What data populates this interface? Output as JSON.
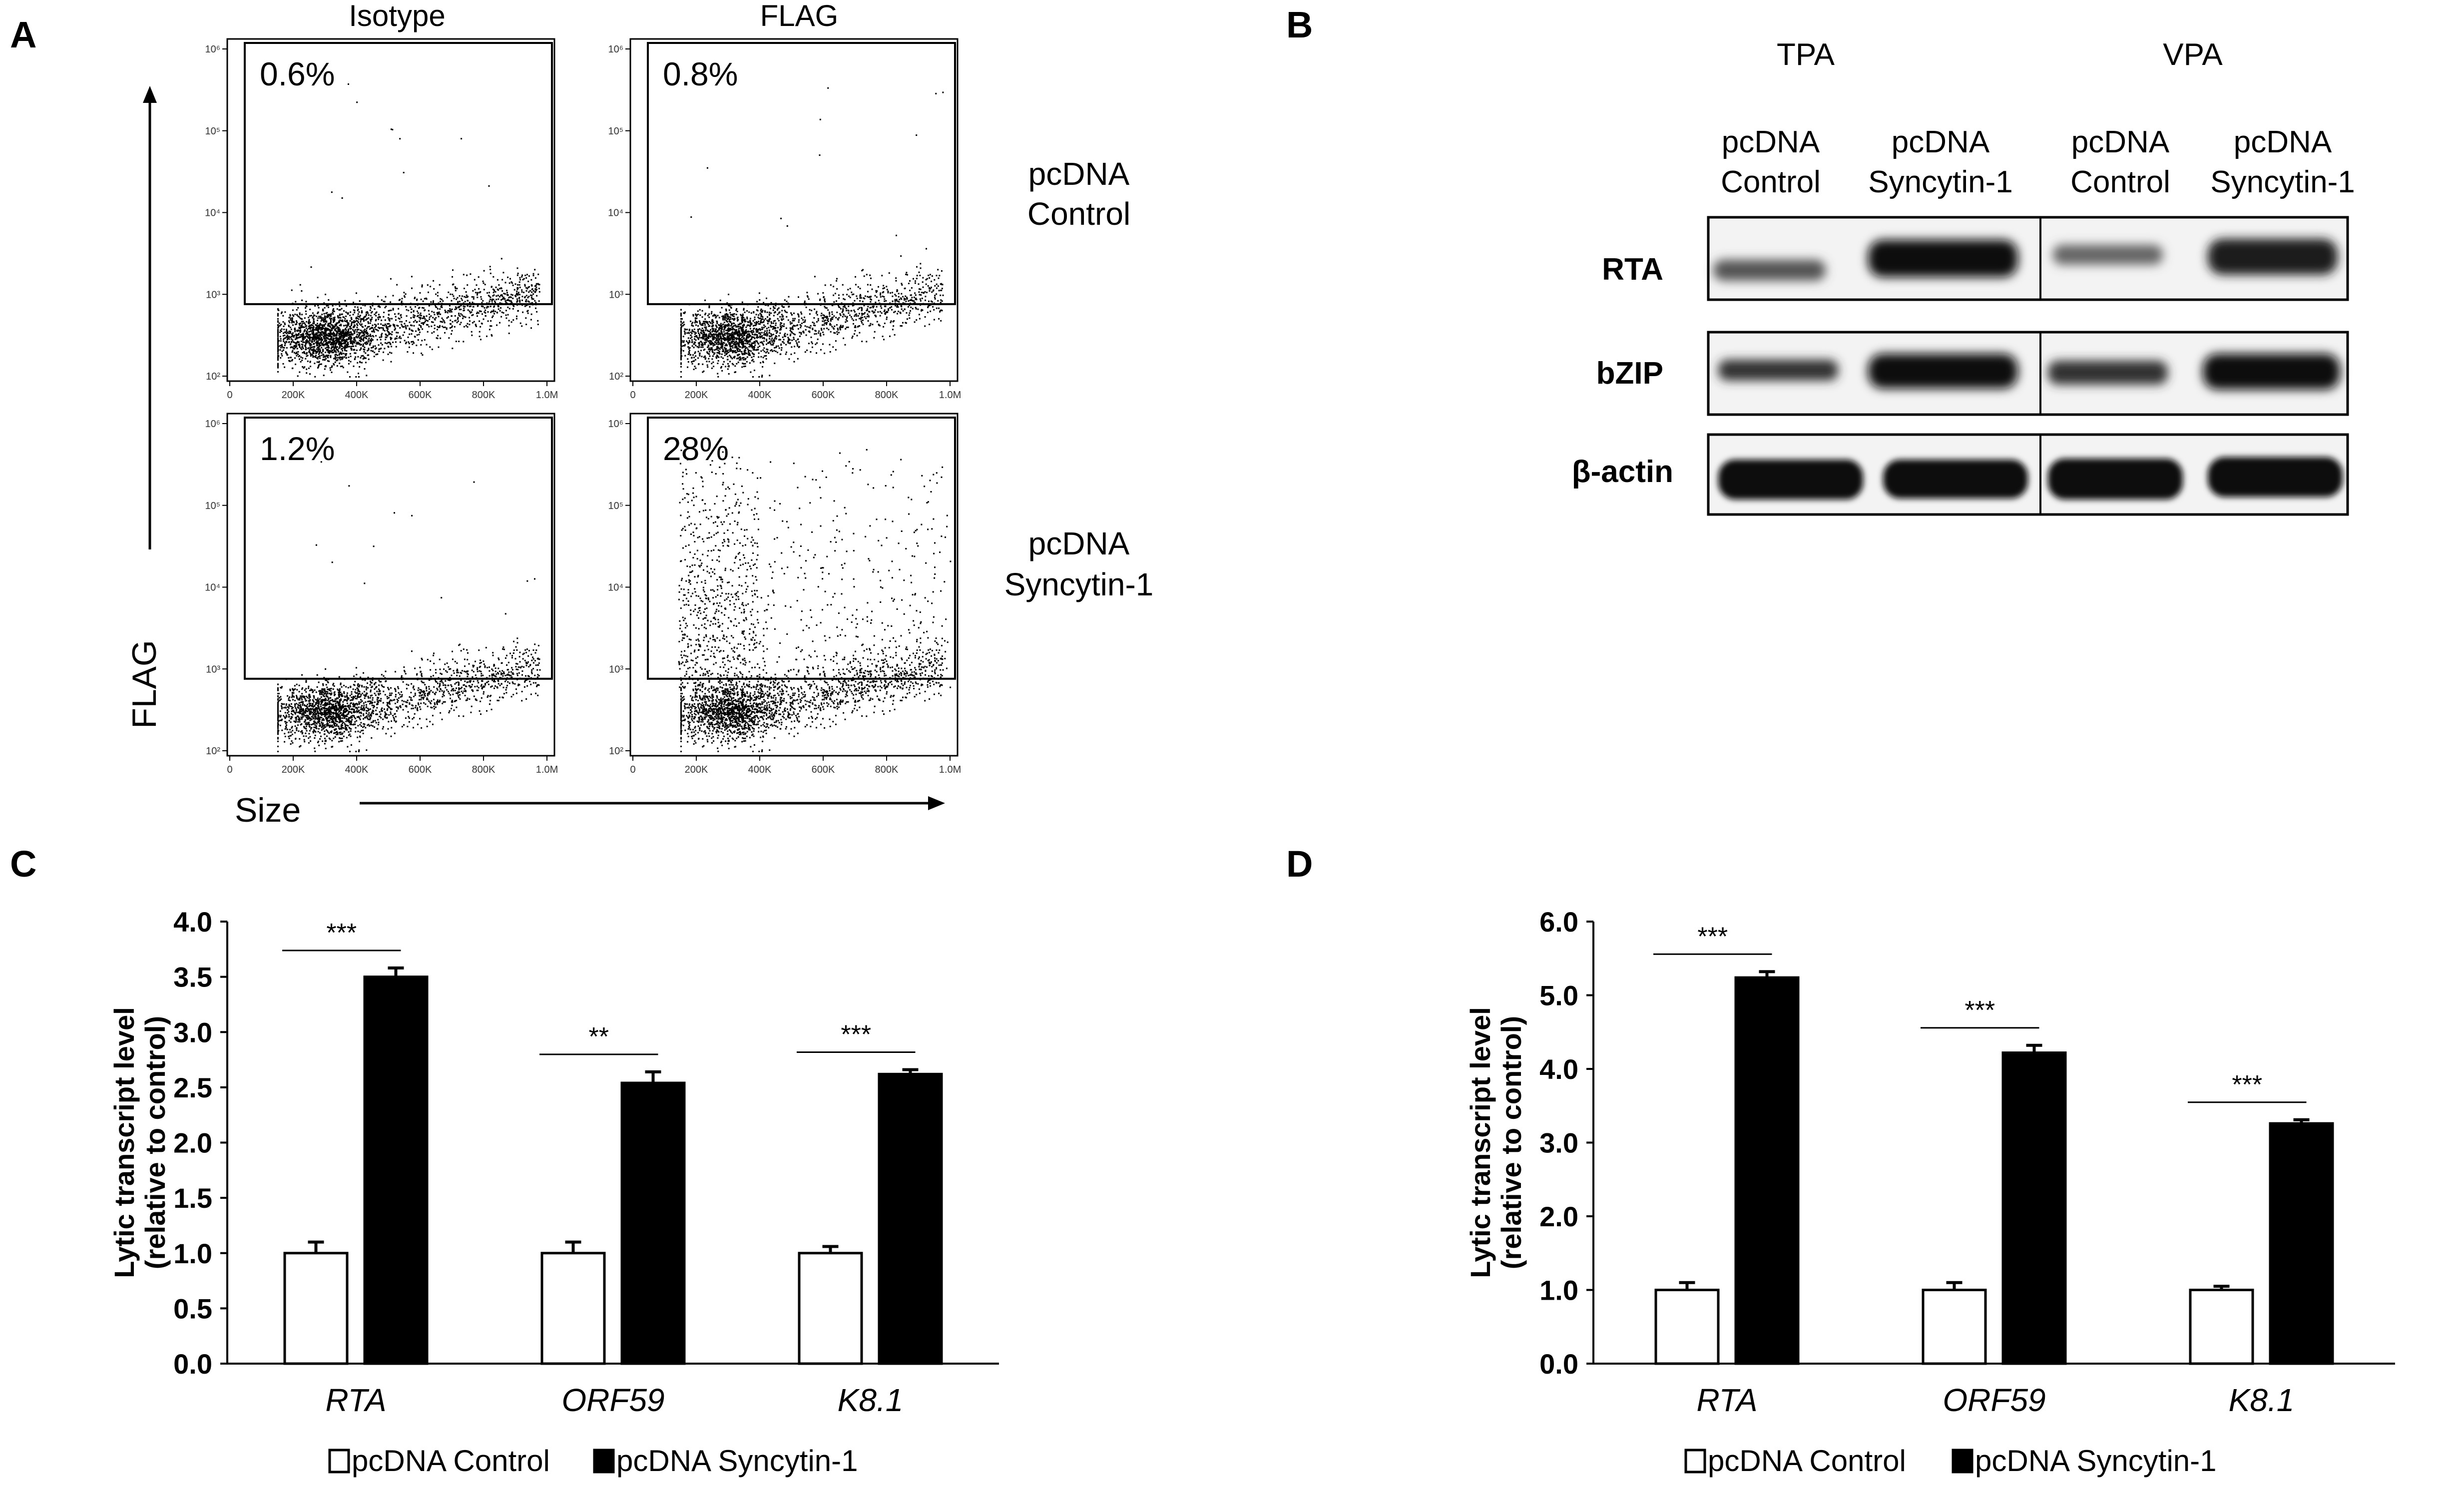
{
  "panels": {
    "a": "A",
    "b": "B",
    "c": "C",
    "d": "D"
  },
  "panel_a": {
    "col_labels": [
      "Isotype",
      "FLAG"
    ],
    "row_labels": [
      [
        "pcDNA",
        "Control"
      ],
      [
        "pcDNA",
        "Syncytin-1"
      ]
    ],
    "y_axis_label": "FLAG",
    "x_axis_label": "Size",
    "x_ticks": [
      "0",
      "200K",
      "400K",
      "600K",
      "800K",
      "1.0M"
    ],
    "y_ticks": [
      "10²",
      "10³",
      "10⁴",
      "10⁵",
      "10⁶"
    ],
    "percentages": [
      "0.6%",
      "0.8%",
      "1.2%",
      "28%"
    ]
  },
  "panel_b": {
    "treatments": [
      "TPA",
      "VPA"
    ],
    "lanes": [
      [
        "pcDNA",
        "Control"
      ],
      [
        "pcDNA",
        "Syncytin-1"
      ],
      [
        "pcDNA",
        "Control"
      ],
      [
        "pcDNA",
        "Syncytin-1"
      ]
    ],
    "proteins": [
      "RTA",
      "bZIP",
      "β-actin"
    ]
  },
  "chart_data": [
    {
      "type": "bar",
      "panel": "C",
      "categories": [
        "RTA",
        "ORF59",
        "K8.1"
      ],
      "series": [
        {
          "name": "pcDNA Control",
          "values": [
            1.0,
            1.0,
            1.0
          ],
          "errors": [
            0.1,
            0.1,
            0.06
          ],
          "color": "#ffffff"
        },
        {
          "name": "pcDNA Syncytin-1",
          "values": [
            3.5,
            2.54,
            2.62
          ],
          "errors": [
            0.08,
            0.1,
            0.04
          ],
          "color": "#000000"
        }
      ],
      "significance": [
        "***",
        "**",
        "***"
      ],
      "ylabel": [
        "Lytic transcript level",
        "(relative to control)"
      ],
      "ylim": [
        0,
        4.0
      ],
      "yticks": [
        "0.0",
        "0.5",
        "1.0",
        "1.5",
        "2.0",
        "2.5",
        "3.0",
        "3.5",
        "4.0"
      ],
      "legend": "bottom"
    },
    {
      "type": "bar",
      "panel": "D",
      "categories": [
        "RTA",
        "ORF59",
        "K8.1"
      ],
      "series": [
        {
          "name": "pcDNA Control",
          "values": [
            1.0,
            1.0,
            1.0
          ],
          "errors": [
            0.1,
            0.1,
            0.05
          ],
          "color": "#ffffff"
        },
        {
          "name": "pcDNA Syncytin-1",
          "values": [
            5.24,
            4.22,
            3.26
          ],
          "errors": [
            0.08,
            0.1,
            0.05
          ],
          "color": "#000000"
        }
      ],
      "significance": [
        "***",
        "***",
        "***"
      ],
      "ylabel": [
        "Lytic transcript level",
        "(relative to control)"
      ],
      "ylim": [
        0,
        6.0
      ],
      "yticks": [
        "0.0",
        "1.0",
        "2.0",
        "3.0",
        "4.0",
        "5.0",
        "6.0"
      ],
      "legend": "bottom"
    }
  ]
}
